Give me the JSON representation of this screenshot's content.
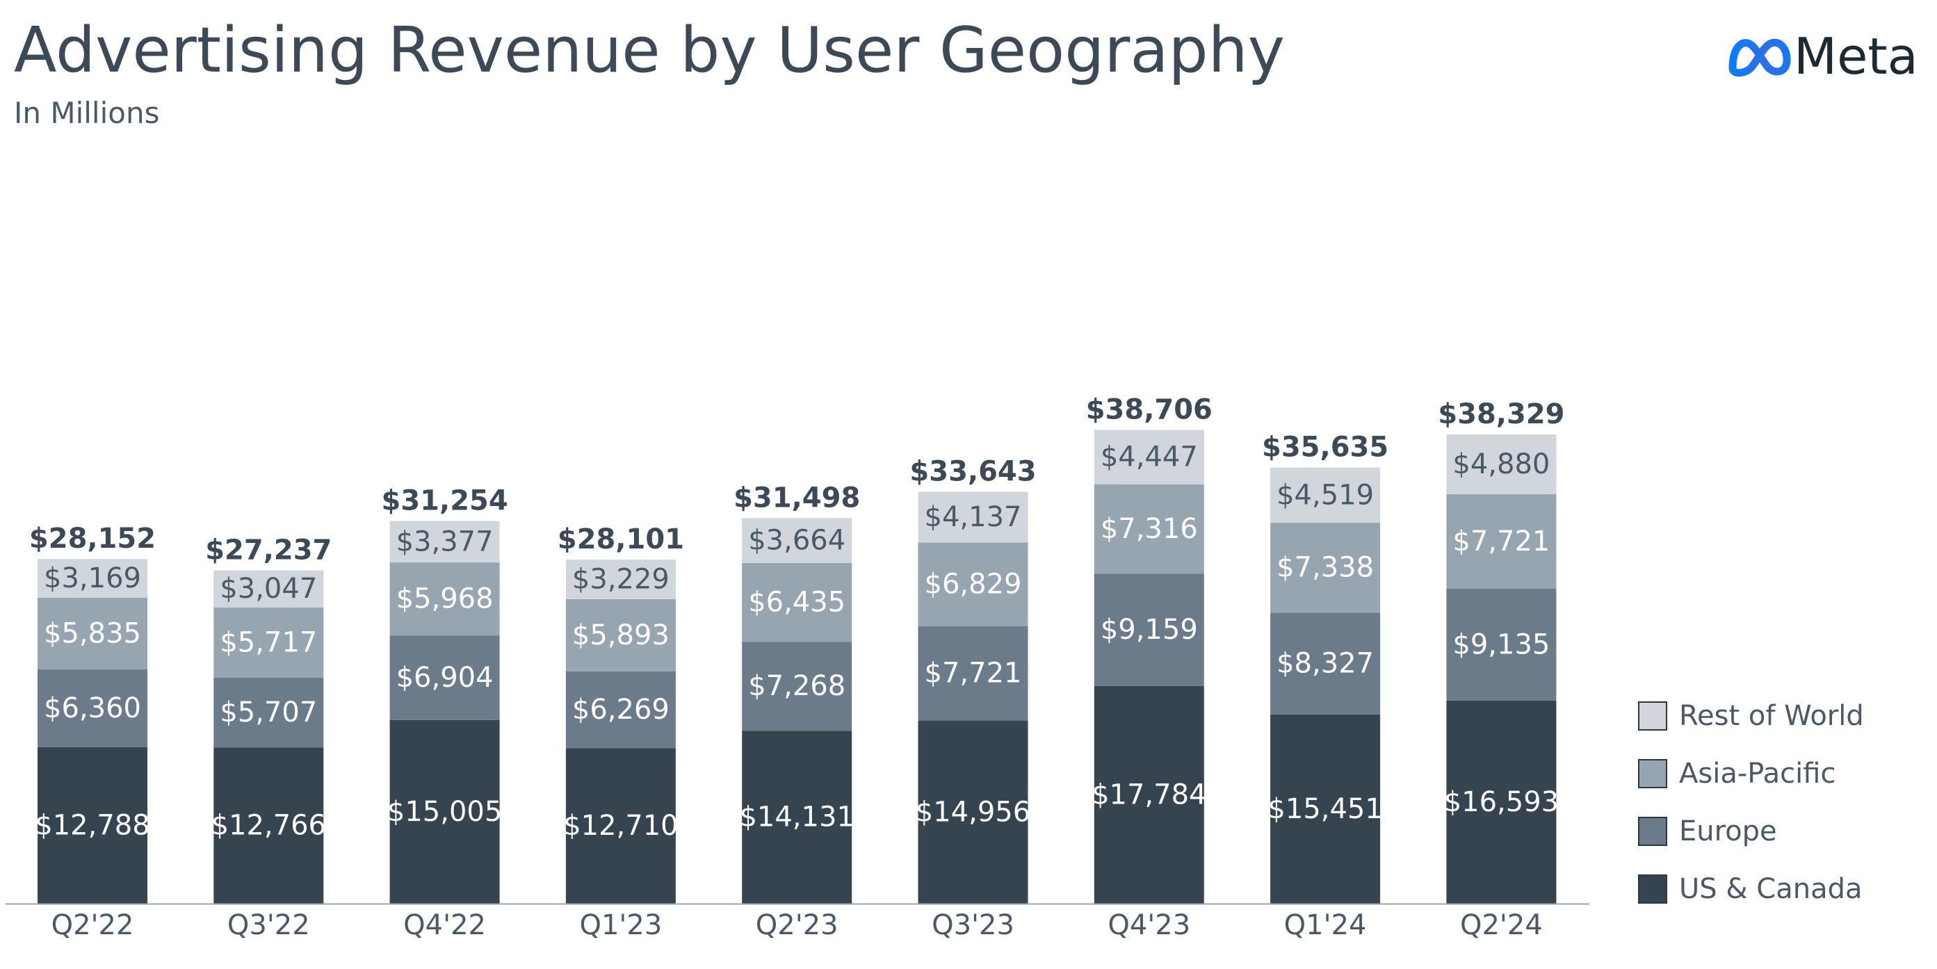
{
  "header": {
    "title": "Advertising Revenue by User Geography",
    "subtitle": "In Millions"
  },
  "brand": {
    "name": "Meta",
    "logo_icon": "meta-infinity-icon",
    "logo_color": "#1d72e8"
  },
  "chart_data": {
    "type": "bar",
    "stacked": true,
    "title": "Advertising Revenue by User Geography",
    "subtitle": "In Millions",
    "xlabel": "",
    "ylabel": "",
    "ylim": [
      0,
      40000
    ],
    "grid": false,
    "legend_position": "bottom-right",
    "categories": [
      "Q2'22",
      "Q3'22",
      "Q4'22",
      "Q1'23",
      "Q2'23",
      "Q3'23",
      "Q4'23",
      "Q1'24",
      "Q2'24"
    ],
    "totals": [
      28152,
      27237,
      31254,
      28101,
      31498,
      33643,
      38706,
      35635,
      38329
    ],
    "total_labels": [
      "$28,152",
      "$27,237",
      "$31,254",
      "$28,101",
      "$31,498",
      "$33,643",
      "$38,706",
      "$35,635",
      "$38,329"
    ],
    "series": [
      {
        "name": "US & Canada",
        "color": "#36444f",
        "label_color": "#ffffff",
        "values": [
          12788,
          12766,
          15005,
          12710,
          14131,
          14956,
          17784,
          15451,
          16593
        ],
        "labels": [
          "$12,788",
          "$12,766",
          "$15,005",
          "$12,710",
          "$14,131",
          "$14,956",
          "$17,784",
          "$15,451",
          "$16,593"
        ]
      },
      {
        "name": "Europe",
        "color": "#6b7b89",
        "label_color": "#ffffff",
        "values": [
          6360,
          5707,
          6904,
          6269,
          7268,
          7721,
          9159,
          8327,
          9135
        ],
        "labels": [
          "$6,360",
          "$5,707",
          "$6,904",
          "$6,269",
          "$7,268",
          "$7,721",
          "$9,159",
          "$8,327",
          "$9,135"
        ]
      },
      {
        "name": "Asia-Pacific",
        "color": "#97a5b1",
        "label_color": "#ffffff",
        "values": [
          5835,
          5717,
          5968,
          5893,
          6435,
          6829,
          7316,
          7338,
          7721
        ],
        "labels": [
          "$5,835",
          "$5,717",
          "$5,968",
          "$5,893",
          "$6,435",
          "$6,829",
          "$7,316",
          "$7,338",
          "$7,721"
        ]
      },
      {
        "name": "Rest of World",
        "color": "#d0d6dc",
        "label_color": "#4b5967",
        "values": [
          3169,
          3047,
          3377,
          3229,
          3664,
          4137,
          4447,
          4519,
          4880
        ],
        "labels": [
          "$3,169",
          "$3,047",
          "$3,377",
          "$3,229",
          "$3,664",
          "$4,137",
          "$4,447",
          "$4,519",
          "$4,880"
        ]
      }
    ],
    "legend": [
      "Rest of World",
      "Asia-Pacific",
      "Europe",
      "US & Canada"
    ],
    "axis_color": "#9aa5ae",
    "total_label_color": "#3c4a57",
    "tick_label_color": "#4b5967"
  }
}
